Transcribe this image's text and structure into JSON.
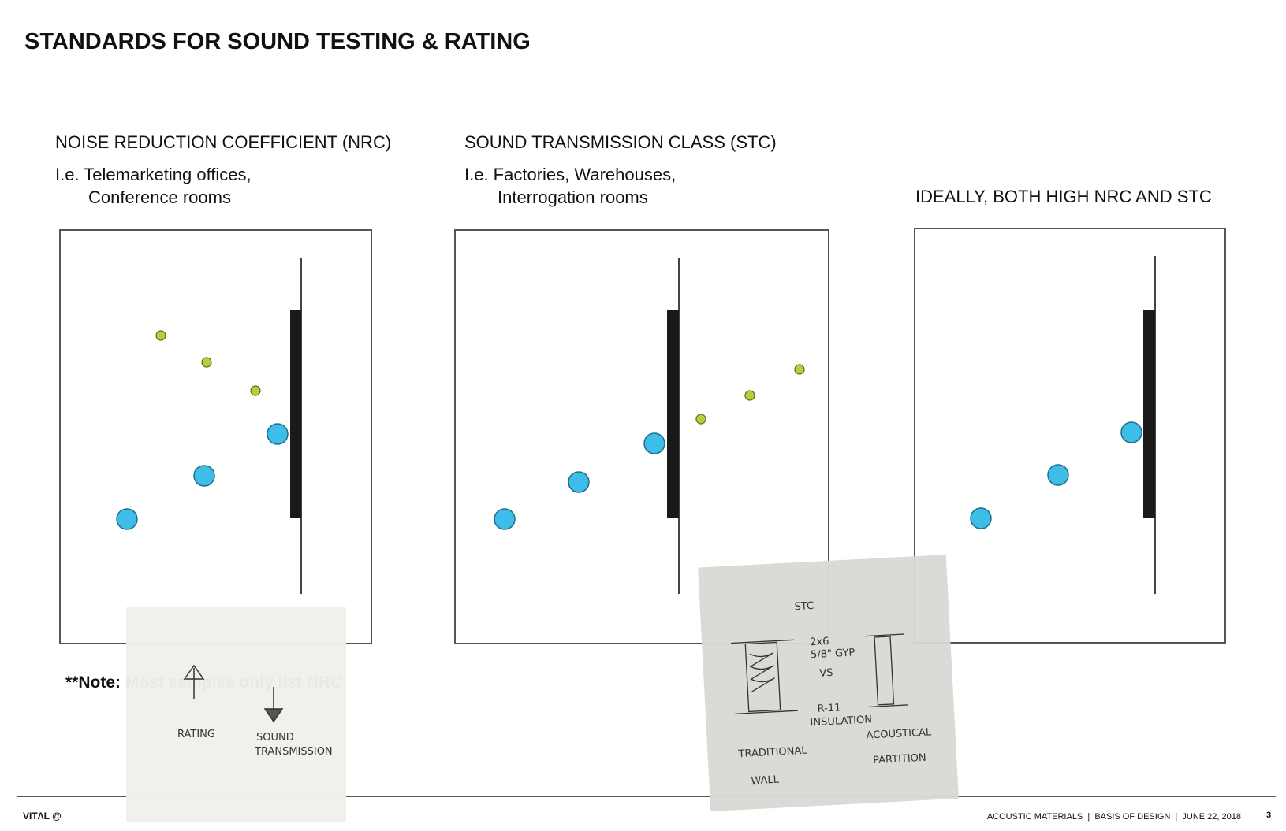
{
  "title": "STANDARDS FOR SOUND TESTING & RATING",
  "panels": [
    {
      "heading": "NOISE REDUCTION COEFFICIENT (NRC)",
      "examples": [
        "I.e. Telemarketing offices,",
        "Conference rooms"
      ]
    },
    {
      "heading": "SOUND TRANSMISSION CLASS (STC)",
      "examples": [
        "I.e. Factories, Warehouses,",
        "Interrogation rooms"
      ]
    },
    {
      "heading": "IDEALLY, BOTH HIGH NRC AND STC"
    }
  ],
  "note": "**Note: Most samples only list NRC",
  "sketch_rating": {
    "labels": [
      "RATING",
      "SOUND",
      "TRANSMISSION"
    ]
  },
  "sketch_stc": {
    "title": "STC",
    "labels": [
      "2x6",
      "5/8\" GYP",
      "VS",
      "R-11",
      "INSULATION",
      "TRADITIONAL",
      "WALL",
      "ACOUSTICAL",
      "PARTITION"
    ]
  },
  "footer": {
    "logo": "VITΛL @",
    "info": "ACOUSTIC MATERIALS  |  BASIS OF DESIGN  |  JUNE 22, 2018",
    "page": "3"
  }
}
